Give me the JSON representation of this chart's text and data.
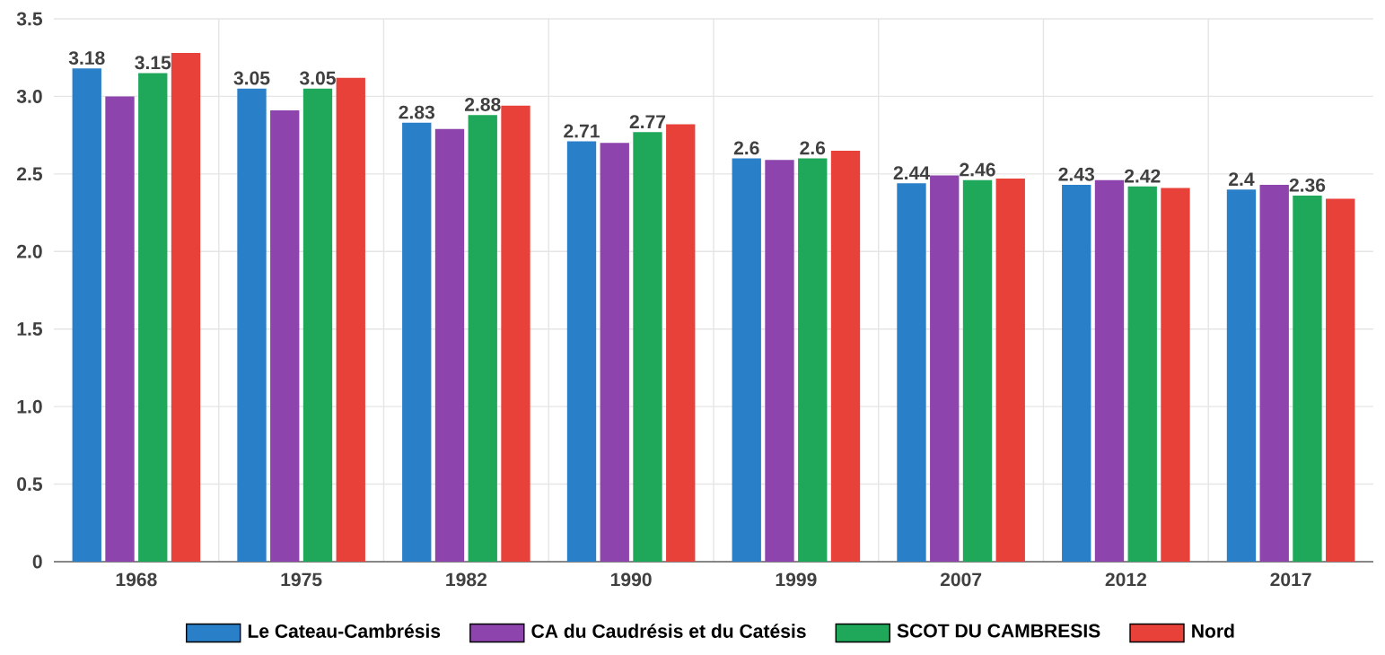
{
  "chart_data": {
    "type": "bar",
    "categories": [
      "1968",
      "1975",
      "1982",
      "1990",
      "1999",
      "2007",
      "2012",
      "2017"
    ],
    "series": [
      {
        "name": "Le Cateau-Cambrésis",
        "color": "#2a7fc9",
        "values": [
          3.18,
          3.05,
          2.83,
          2.71,
          2.6,
          2.44,
          2.43,
          2.4
        ],
        "value_labels": [
          "3.18",
          "3.05",
          "2.83",
          "2.71",
          "2.6",
          "2.44",
          "2.43",
          "2.4"
        ]
      },
      {
        "name": "CA du Caudrésis et du Catésis",
        "color": "#8e44ad",
        "values": [
          3.0,
          2.91,
          2.79,
          2.7,
          2.59,
          2.49,
          2.46,
          2.43
        ]
      },
      {
        "name": "SCOT DU CAMBRESIS",
        "color": "#1fa85a",
        "values": [
          3.15,
          3.05,
          2.88,
          2.77,
          2.6,
          2.46,
          2.42,
          2.36
        ],
        "value_labels": [
          "3.15",
          "3.05",
          "2.88",
          "2.77",
          "2.6",
          "2.46",
          "2.42",
          "2.36"
        ]
      },
      {
        "name": "Nord",
        "color": "#e8413a",
        "values": [
          3.28,
          3.12,
          2.94,
          2.82,
          2.65,
          2.47,
          2.41,
          2.34
        ]
      }
    ],
    "ylim": [
      0,
      3.5
    ],
    "yticks": [
      0,
      0.5,
      {
        "value": 1,
        "label": "1.0"
      },
      1.5,
      {
        "value": 2,
        "label": "2.0"
      },
      2.5,
      {
        "value": 3,
        "label": "3.0"
      },
      3.5
    ],
    "grid": true,
    "legend": "bottom"
  }
}
